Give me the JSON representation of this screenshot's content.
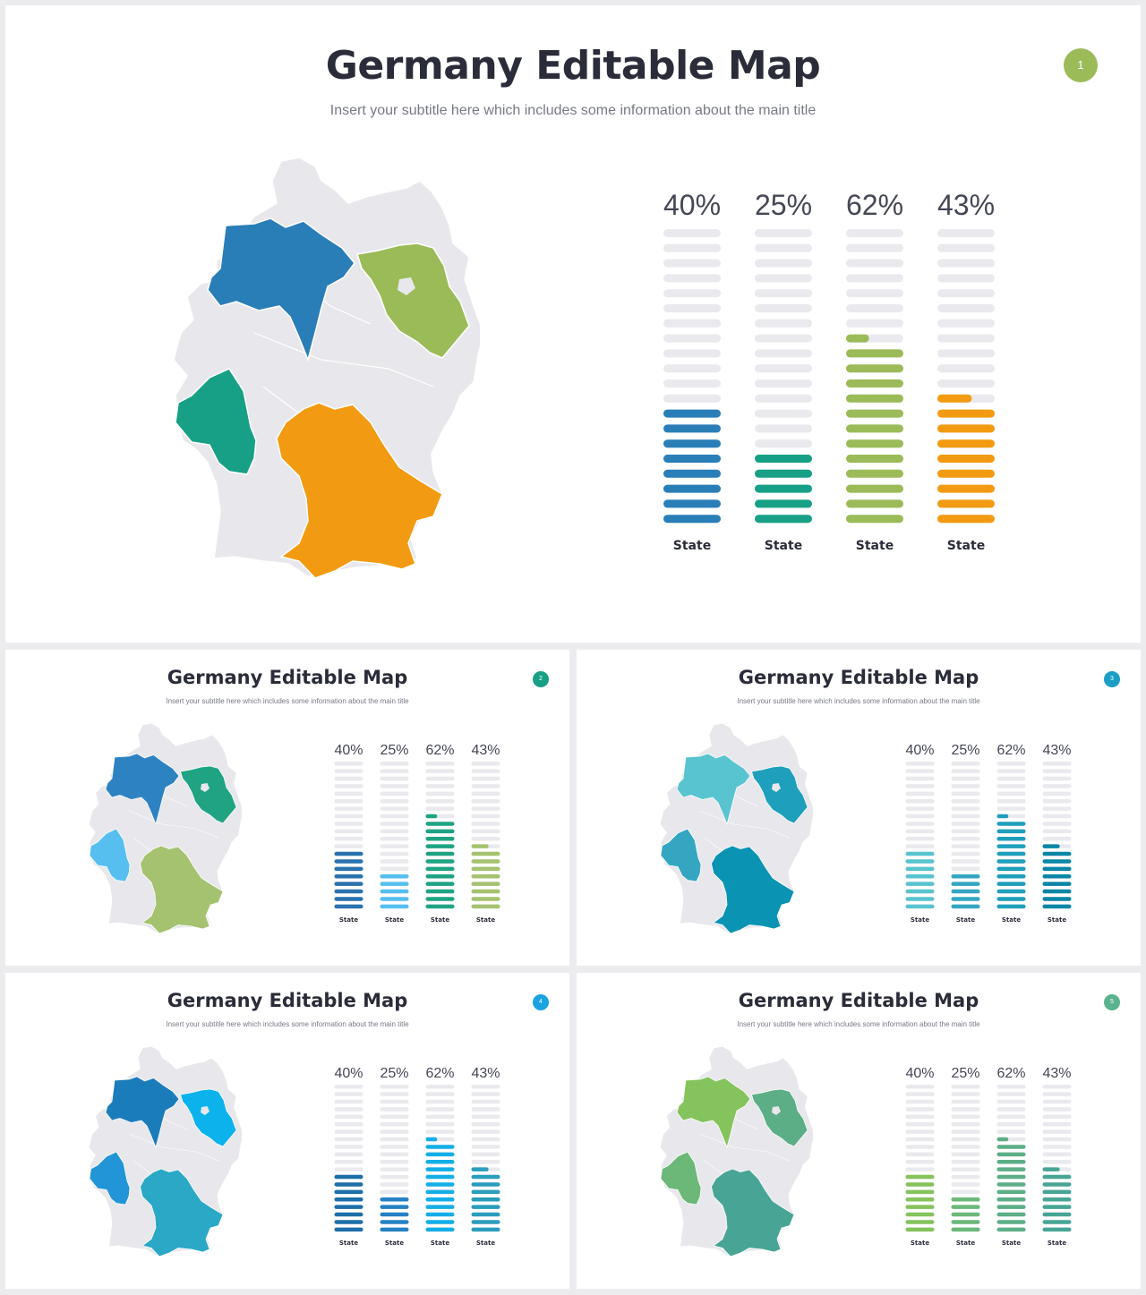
{
  "slides": [
    {
      "title": "Germany Editable Map",
      "subtitle": "Insert your subtitle here which includes some information about the main title",
      "badge": "1",
      "badge_color": "#9bbb59",
      "region_colors": [
        "#2a7eb8",
        "#9bbb59",
        "#17a085",
        "#f29b12"
      ],
      "bar_colors": [
        "#2a7eb8",
        "#17a085",
        "#9bbb59",
        "#f29b12"
      ],
      "chart_data": {
        "type": "bar",
        "values": [
          40,
          25,
          62,
          43
        ],
        "value_labels": [
          "40%",
          "25%",
          "62%",
          "43%"
        ],
        "categories": [
          "State",
          "State",
          "State",
          "State"
        ],
        "ylim": [
          0,
          100
        ]
      }
    },
    {
      "title": "Germany Editable Map",
      "subtitle": "Insert your subtitle here which includes some information about the main title",
      "badge": "2",
      "badge_color": "#17a085",
      "region_colors": [
        "#2d82c2",
        "#1fa383",
        "#56bfef",
        "#a5c270"
      ],
      "bar_colors": [
        "#2a72ae",
        "#56bfef",
        "#1fa383",
        "#a5c270"
      ],
      "chart_data": {
        "type": "bar",
        "values": [
          40,
          25,
          62,
          43
        ],
        "value_labels": [
          "40%",
          "25%",
          "62%",
          "43%"
        ],
        "categories": [
          "State",
          "State",
          "State",
          "State"
        ],
        "ylim": [
          0,
          100
        ]
      }
    },
    {
      "title": "Germany Editable Map",
      "subtitle": "Insert your subtitle here which includes some information about the main title",
      "badge": "3",
      "badge_color": "#1a9ec4",
      "region_colors": [
        "#58c4cf",
        "#1e9fbb",
        "#34a6c2",
        "#0a93b3"
      ],
      "bar_colors": [
        "#58c4cf",
        "#34a6c2",
        "#1e9fbb",
        "#0a86a6"
      ],
      "chart_data": {
        "type": "bar",
        "values": [
          40,
          25,
          62,
          43
        ],
        "value_labels": [
          "40%",
          "25%",
          "62%",
          "43%"
        ],
        "categories": [
          "State",
          "State",
          "State",
          "State"
        ],
        "ylim": [
          0,
          100
        ]
      }
    },
    {
      "title": "Germany Editable Map",
      "subtitle": "Insert your subtitle here which includes some information about the main title",
      "badge": "4",
      "badge_color": "#1aa3e0",
      "region_colors": [
        "#1a7cbb",
        "#0bb2ec",
        "#2195d5",
        "#2aa8c6"
      ],
      "bar_colors": [
        "#1c6fa8",
        "#2581c4",
        "#14aee6",
        "#2b9dbc"
      ],
      "chart_data": {
        "type": "bar",
        "values": [
          40,
          25,
          62,
          43
        ],
        "value_labels": [
          "40%",
          "25%",
          "62%",
          "43%"
        ],
        "categories": [
          "State",
          "State",
          "State",
          "State"
        ],
        "ylim": [
          0,
          100
        ]
      }
    },
    {
      "title": "Germany Editable Map",
      "subtitle": "Insert your subtitle here which includes some information about the main title",
      "badge": "5",
      "badge_color": "#5ab38d",
      "region_colors": [
        "#85c35d",
        "#5cae86",
        "#6bb878",
        "#48a596"
      ],
      "bar_colors": [
        "#85c35d",
        "#6bb878",
        "#5cae86",
        "#48a596"
      ],
      "chart_data": {
        "type": "bar",
        "values": [
          40,
          25,
          62,
          43
        ],
        "value_labels": [
          "40%",
          "25%",
          "62%",
          "43%"
        ],
        "categories": [
          "State",
          "State",
          "State",
          "State"
        ],
        "ylim": [
          0,
          100
        ]
      }
    }
  ]
}
